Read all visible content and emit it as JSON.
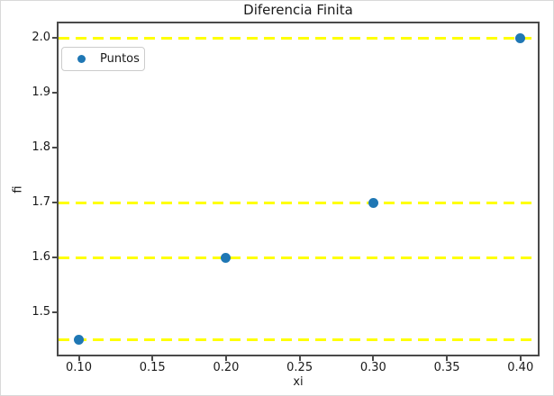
{
  "chart_data": {
    "type": "scatter",
    "title": "Diferencia Finita",
    "xlabel": "xi",
    "ylabel": "fi",
    "series": [
      {
        "name": "Puntos",
        "marker": "circle",
        "color": "#1f77b4",
        "points": [
          {
            "x": 0.1,
            "y": 1.45
          },
          {
            "x": 0.2,
            "y": 1.6
          },
          {
            "x": 0.3,
            "y": 1.7
          },
          {
            "x": 0.4,
            "y": 2.0
          }
        ]
      }
    ],
    "hlines": {
      "values": [
        1.45,
        1.6,
        1.7,
        2.0
      ],
      "color": "#ffff00",
      "style": "dashed"
    },
    "xticks": {
      "values": [
        0.1,
        0.15,
        0.2,
        0.25,
        0.3,
        0.35,
        0.4
      ],
      "labels": [
        "0.10",
        "0.15",
        "0.20",
        "0.25",
        "0.30",
        "0.35",
        "0.40"
      ]
    },
    "yticks": {
      "values": [
        1.5,
        1.6,
        1.7,
        1.8,
        1.9,
        2.0
      ],
      "labels": [
        "1.5",
        "1.6",
        "1.7",
        "1.8",
        "1.9",
        "2.0"
      ]
    },
    "xlim": [
      0.085,
      0.413
    ],
    "ylim": [
      1.42,
      2.03
    ],
    "grid": false,
    "legend": {
      "label": "Puntos",
      "position": "upper left"
    },
    "colors": {
      "marker": "#1f77b4",
      "hline": "#ffff00",
      "spine": "#4a4a4a",
      "text": "#1a1a1a",
      "background": "#ffffff"
    }
  }
}
